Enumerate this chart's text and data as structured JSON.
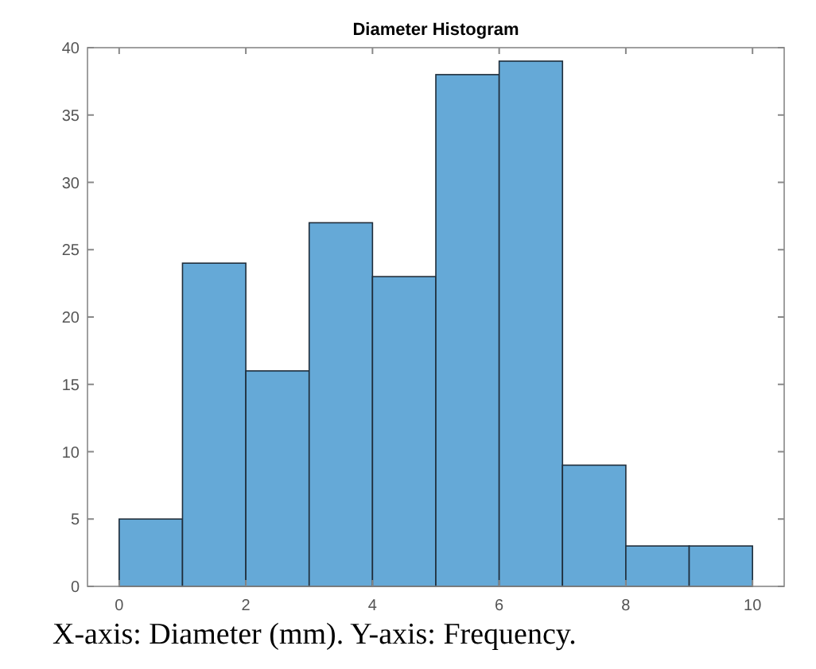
{
  "chart_data": {
    "type": "histogram",
    "title": "Diameter Histogram",
    "bins": [
      0,
      1,
      2,
      3,
      4,
      5,
      6,
      7,
      8,
      9,
      10
    ],
    "values": [
      5,
      24,
      16,
      27,
      23,
      38,
      39,
      9,
      3,
      3
    ],
    "color": "#65a9d7",
    "xlim": [
      -0.5,
      10.5
    ],
    "xticks": [
      0,
      2,
      4,
      6,
      8,
      10
    ],
    "ylim": [
      0,
      40
    ],
    "yticks": [
      0,
      5,
      10,
      15,
      20,
      25,
      30,
      35,
      40
    ],
    "grid": false,
    "annotations": [
      "X-axis: Diameter (mm). Y-axis: Frequency."
    ]
  }
}
